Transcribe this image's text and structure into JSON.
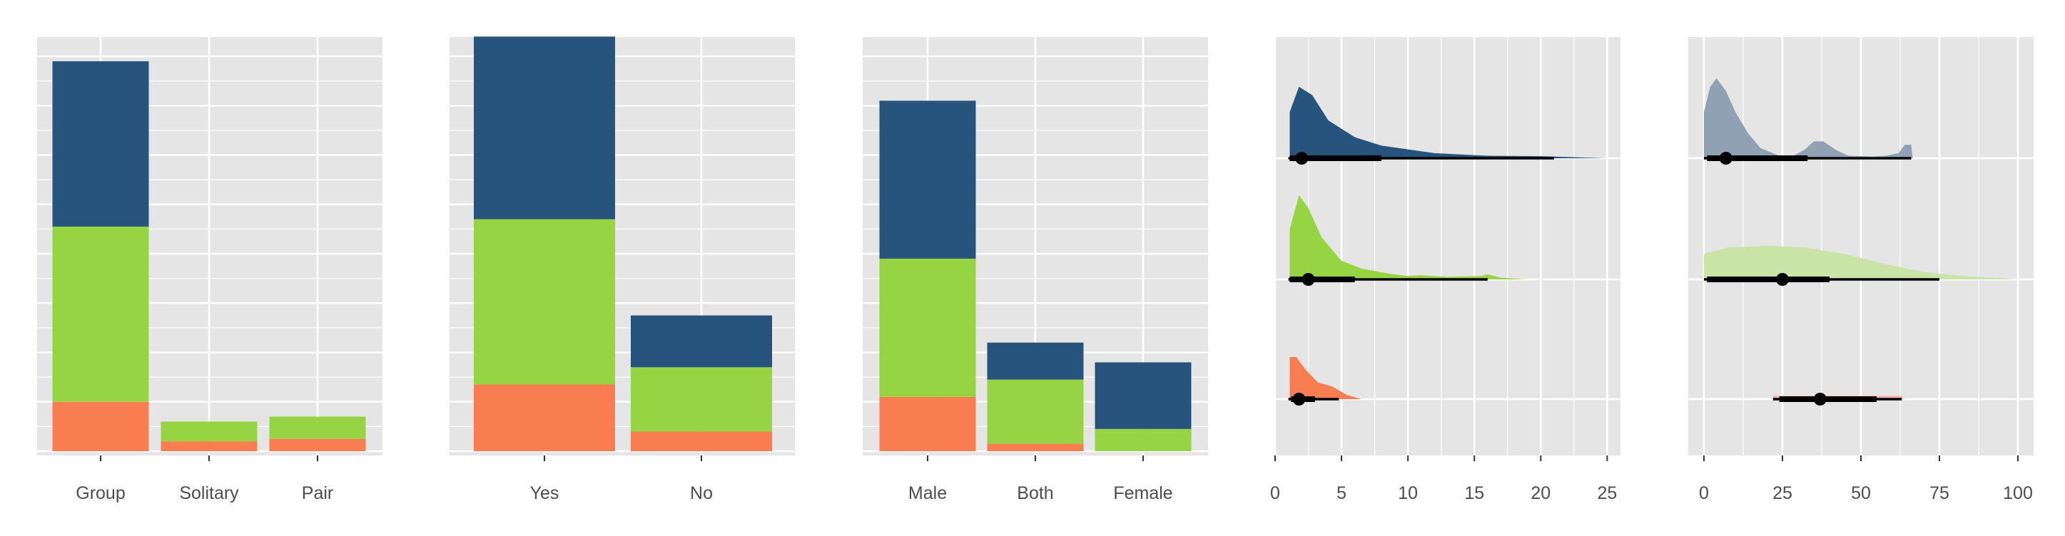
{
  "colors": {
    "panel_bg": "#e5e5e5",
    "grid": "#ffffff",
    "tick_text": "#4d4d4d",
    "tick_mark": "#333333",
    "dark_blue": "#26547c",
    "lime": "#97d444",
    "orange": "#f87d51",
    "slate_faded": "#8fa1b3",
    "lime_faded": "#c9e4a6",
    "orange_faded": "#f5b9a6",
    "interval": "#000000"
  },
  "chart_data": [
    {
      "type": "bar",
      "stacked": true,
      "categories": [
        "Group",
        "Solitary",
        "Pair"
      ],
      "ylim": [
        0,
        160
      ],
      "series": [
        {
          "key": "orange",
          "values": [
            20,
            4,
            5
          ]
        },
        {
          "key": "lime",
          "values": [
            71,
            8,
            9
          ]
        },
        {
          "key": "dark_blue",
          "values": [
            67,
            0,
            0
          ]
        }
      ],
      "grid": true
    },
    {
      "type": "bar",
      "stacked": true,
      "categories": [
        "Yes",
        "No"
      ],
      "ylim": [
        0,
        160
      ],
      "series": [
        {
          "key": "orange",
          "values": [
            27,
            8
          ]
        },
        {
          "key": "lime",
          "values": [
            67,
            26
          ]
        },
        {
          "key": "dark_blue",
          "values": [
            74,
            21
          ]
        }
      ],
      "grid": true
    },
    {
      "type": "bar",
      "stacked": true,
      "categories": [
        "Male",
        "Both",
        "Female"
      ],
      "ylim": [
        0,
        160
      ],
      "series": [
        {
          "key": "orange",
          "values": [
            22,
            3,
            0
          ]
        },
        {
          "key": "lime",
          "values": [
            56,
            26,
            9
          ]
        },
        {
          "key": "dark_blue",
          "values": [
            64,
            15,
            27
          ]
        }
      ],
      "grid": true
    },
    {
      "type": "area",
      "subtype": "halfeye",
      "xlim": [
        0,
        26
      ],
      "x_ticks": [
        0,
        5,
        10,
        15,
        20,
        25
      ],
      "rows": [
        {
          "key": "dark_blue",
          "density": [
            [
              1.1,
              0.55
            ],
            [
              1.8,
              0.85
            ],
            [
              2.8,
              0.75
            ],
            [
              4,
              0.45
            ],
            [
              6,
              0.25
            ],
            [
              8,
              0.15
            ],
            [
              12,
              0.06
            ],
            [
              16,
              0.03
            ],
            [
              20,
              0.025
            ],
            [
              25,
              0
            ]
          ],
          "point": 2.0,
          "interval_66": [
            1.1,
            8.0
          ],
          "interval_95": [
            1.0,
            21.0
          ]
        },
        {
          "key": "lime",
          "density": [
            [
              1.1,
              0.6
            ],
            [
              1.8,
              1.0
            ],
            [
              2.5,
              0.85
            ],
            [
              3.5,
              0.5
            ],
            [
              5,
              0.22
            ],
            [
              6.5,
              0.13
            ],
            [
              8.5,
              0.07
            ],
            [
              10,
              0.04
            ],
            [
              11,
              0.05
            ],
            [
              13,
              0.03
            ],
            [
              15.5,
              0.04
            ],
            [
              16,
              0.06
            ],
            [
              17,
              0.02
            ],
            [
              19,
              0
            ]
          ],
          "point": 2.5,
          "interval_66": [
            1.1,
            6.0
          ],
          "interval_95": [
            1.0,
            16.0
          ]
        },
        {
          "key": "orange",
          "density": [
            [
              1.1,
              0.5
            ],
            [
              1.6,
              0.5
            ],
            [
              2.3,
              0.35
            ],
            [
              3.2,
              0.2
            ],
            [
              4.3,
              0.15
            ],
            [
              5.4,
              0.05
            ],
            [
              6.5,
              0
            ]
          ],
          "point": 1.8,
          "interval_66": [
            1.2,
            3.0
          ],
          "interval_95": [
            1.0,
            4.8
          ]
        }
      ],
      "grid": true
    },
    {
      "type": "area",
      "subtype": "halfeye",
      "xlim": [
        -5,
        105
      ],
      "x_ticks": [
        0,
        25,
        50,
        75,
        100
      ],
      "rows": [
        {
          "key": "slate_faded",
          "density": [
            [
              0,
              0.55
            ],
            [
              2,
              0.85
            ],
            [
              4,
              0.95
            ],
            [
              7,
              0.8
            ],
            [
              10,
              0.55
            ],
            [
              14,
              0.3
            ],
            [
              18,
              0.12
            ],
            [
              24,
              0.03
            ],
            [
              28,
              0.02
            ],
            [
              32,
              0.1
            ],
            [
              35,
              0.2
            ],
            [
              38,
              0.2
            ],
            [
              42,
              0.1
            ],
            [
              46,
              0.03
            ],
            [
              54,
              0.02
            ],
            [
              58,
              0.03
            ],
            [
              62,
              0.06
            ],
            [
              64,
              0.16
            ],
            [
              66,
              0.16
            ],
            [
              66.5,
              0
            ]
          ],
          "point": 7,
          "interval_66": [
            1,
            33
          ],
          "interval_95": [
            0,
            66
          ]
        },
        {
          "key": "lime_faded",
          "density": [
            [
              0,
              0.3
            ],
            [
              8,
              0.38
            ],
            [
              20,
              0.4
            ],
            [
              32,
              0.38
            ],
            [
              45,
              0.3
            ],
            [
              58,
              0.18
            ],
            [
              70,
              0.09
            ],
            [
              82,
              0.04
            ],
            [
              92,
              0.02
            ],
            [
              100,
              0
            ]
          ],
          "point": 25,
          "interval_66": [
            1,
            40
          ],
          "interval_95": [
            0,
            75
          ]
        },
        {
          "key": "orange_faded",
          "density": [
            [
              22,
              0.04
            ],
            [
              40,
              0.04
            ],
            [
              63,
              0.04
            ],
            [
              63.5,
              0
            ]
          ],
          "point": 37,
          "interval_66": [
            24,
            55
          ],
          "interval_95": [
            22,
            63
          ]
        }
      ],
      "grid": true
    }
  ]
}
